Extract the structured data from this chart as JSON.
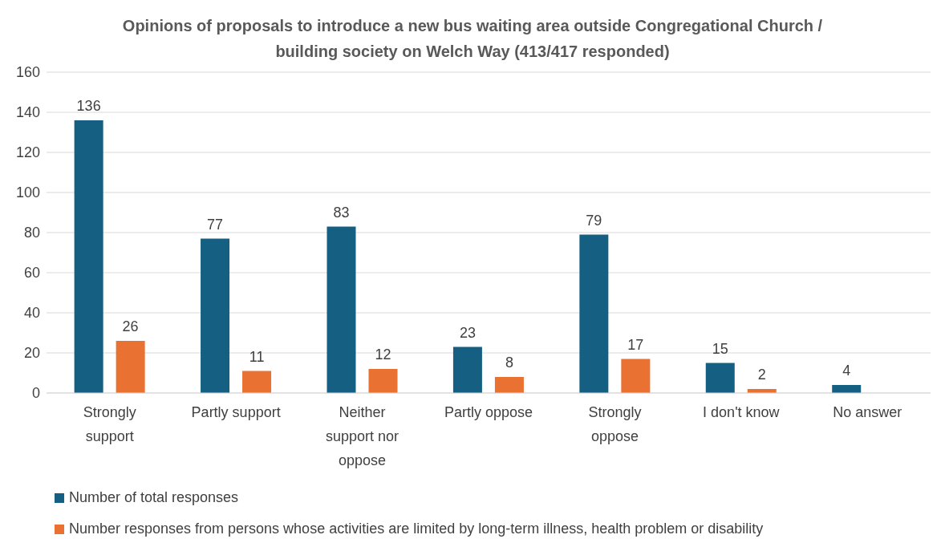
{
  "chart_data": {
    "type": "bar",
    "title": "Opinions of proposals to introduce a new bus waiting area outside Congregational Church / building society on Welch Way (413/417 responded)",
    "categories": [
      "Strongly support",
      "Partly support",
      "Neither support nor oppose",
      "Partly oppose",
      "Strongly oppose",
      "I don't know",
      "No answer"
    ],
    "series": [
      {
        "name": "Number of total responses",
        "color": "#156082",
        "values": [
          136,
          77,
          83,
          23,
          79,
          15,
          4
        ]
      },
      {
        "name": "Number responses from persons whose activities are limited by long-term illness, health problem or disability",
        "color": "#e97132",
        "values": [
          26,
          11,
          12,
          8,
          17,
          2,
          null
        ]
      }
    ],
    "ylim": [
      0,
      160
    ],
    "yticks": [
      0,
      20,
      40,
      60,
      80,
      100,
      120,
      140,
      160
    ],
    "grid": "y",
    "legend": "bottom",
    "data_labels": true
  }
}
